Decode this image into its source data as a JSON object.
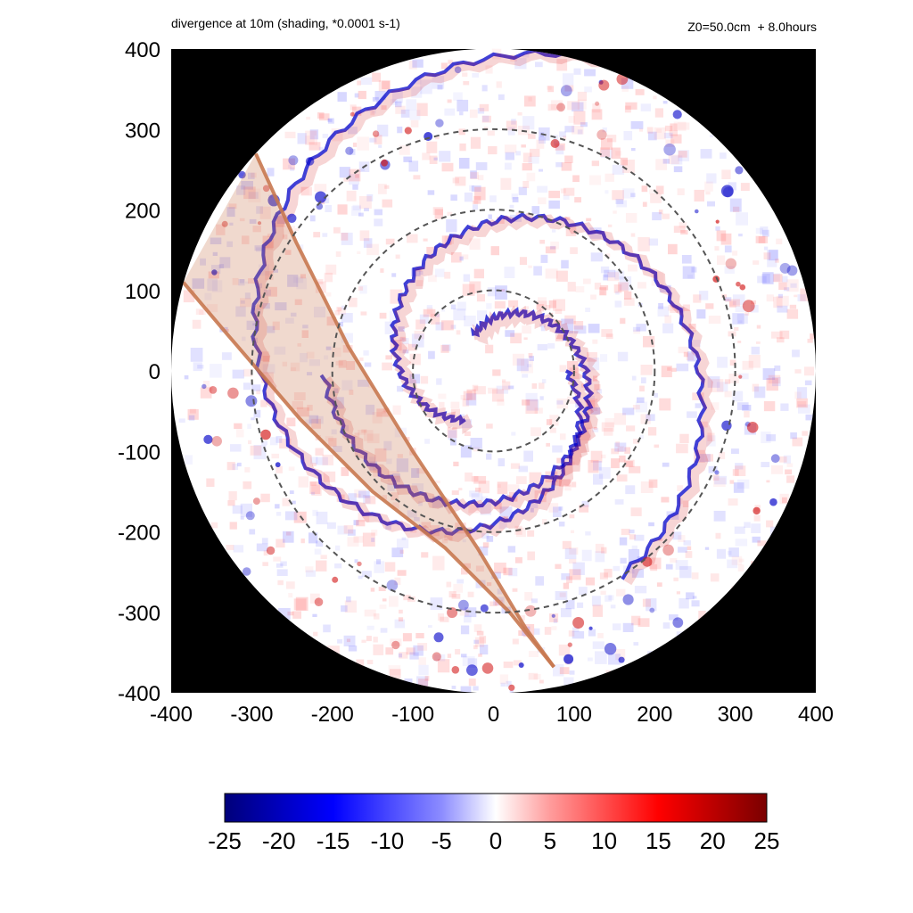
{
  "titles": {
    "left": "divergence at 10m (shading, *0.0001 s-1)",
    "right": "Z0=50.0cm  + 8.0hours"
  },
  "chart_data": {
    "type": "heatmap",
    "title": "divergence at 10m (shading, *0.0001 s-1)",
    "subtitle": "Z0=50.0cm  + 8.0hours",
    "xlabel": "",
    "ylabel": "",
    "xlim": [
      -400,
      400
    ],
    "ylim": [
      -400,
      400
    ],
    "xticks": [
      "-400",
      "-300",
      "-200",
      "-100",
      "0",
      "100",
      "200",
      "300",
      "400"
    ],
    "yticks": [
      "400",
      "300",
      "200",
      "100",
      "0",
      "-100",
      "-200",
      "-300",
      "-400"
    ],
    "domain_radius": 400,
    "reference_circles_radius": [
      100,
      200,
      300
    ],
    "colorbar": {
      "ticks": [
        "-25",
        "-20",
        "-15",
        "-10",
        "-5",
        "0",
        "5",
        "10",
        "15",
        "20",
        "25"
      ],
      "range": [
        -25,
        25
      ]
    },
    "swath_lines": [
      {
        "points": [
          [
            -295,
            270
          ],
          [
            -245,
            160
          ],
          [
            -180,
            30
          ],
          [
            -100,
            -100
          ],
          [
            -20,
            -220
          ],
          [
            40,
            -320
          ],
          [
            75,
            -368
          ]
        ]
      },
      {
        "points": [
          [
            -385,
            110
          ],
          [
            -330,
            45
          ],
          [
            -240,
            -60
          ],
          [
            -150,
            -150
          ],
          [
            -60,
            -220
          ],
          [
            20,
            -300
          ],
          [
            75,
            -368
          ]
        ]
      }
    ],
    "colors": {
      "background": "#000000",
      "negative": "#0000c8",
      "positive": "#d21414",
      "neutral": "#ffffff",
      "swath": "#c87850",
      "circles": "#555555"
    }
  }
}
